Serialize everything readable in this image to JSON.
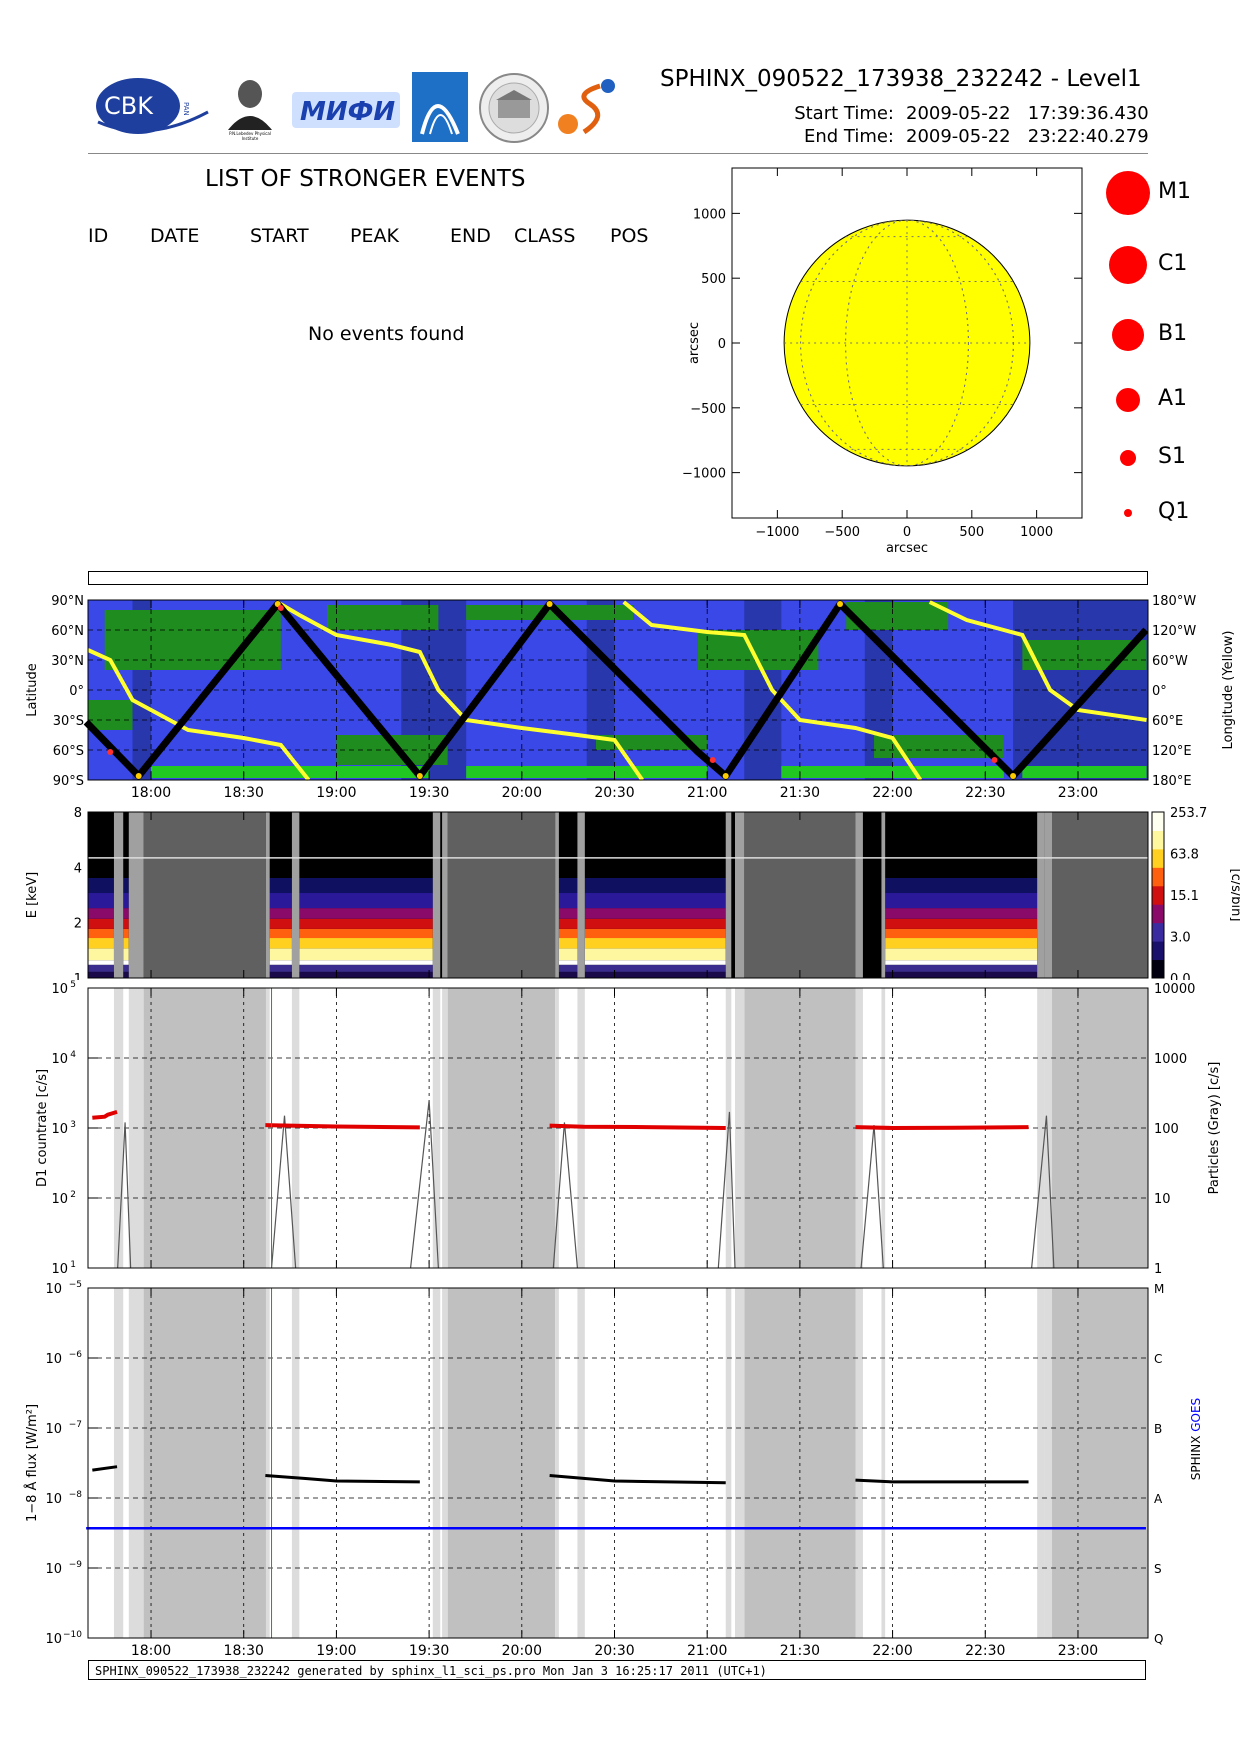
{
  "header": {
    "title": "SPHINX_090522_173938_232242 - Level1",
    "start_label": "Start Time:",
    "start_value": "2009-05-22   17:39:36.430",
    "end_label": "End Time:",
    "end_value": "2009-05-22   23:22:40.279",
    "logos": [
      {
        "icon": "cbk-logo",
        "text": "CBK",
        "sub": "PAN"
      },
      {
        "icon": "lebedev-portrait-logo",
        "text": "P.N.Lebedev Physical Institute of the Russian Academy of Science"
      },
      {
        "icon": "mifi-logo",
        "text": "МИФИ"
      },
      {
        "icon": "blue-arc-logo",
        "text": ""
      },
      {
        "icon": "building-seal-logo",
        "text": ""
      },
      {
        "icon": "swirl-logo",
        "text": ""
      }
    ]
  },
  "events": {
    "title": "LIST OF STRONGER EVENTS",
    "columns": [
      "ID",
      "DATE",
      "START",
      "PEAK",
      "END",
      "CLASS",
      "POS"
    ],
    "empty_message": "No events found"
  },
  "footer": {
    "text": "SPHINX_090522_173938_232242 generated by sphinx_l1_sci_ps.pro Mon Jan  3 16:25:17 2011 (UTC+1)"
  },
  "colors": {
    "sun": "#ffff00",
    "flare_marker": "#ff0000",
    "lat_ocean": "#3a48e8",
    "lat_green": "#1e8c1e",
    "lat_lightgreen": "#22c822",
    "lat_night": "#1a2a78",
    "gray_bg": "#c0c0c0",
    "light_gray": "#dcdcdc",
    "dark_gray": "#606060",
    "count_red": "#e00000",
    "goes_blue": "#0000ff"
  },
  "chart_data": [
    {
      "type": "scatter",
      "name": "solar_disk",
      "xlabel": "arcsec",
      "ylabel": "arcsec",
      "xlim": [
        -1350,
        1350
      ],
      "ylim": [
        -1350,
        1350
      ],
      "xticks": [
        -1000,
        -500,
        0,
        500,
        1000
      ],
      "yticks": [
        -1000,
        -500,
        0,
        500,
        1000
      ],
      "x_tick_labels": [
        "−1000",
        "−500",
        "0",
        "500",
        "1000"
      ],
      "y_tick_labels": [
        "−1000",
        "−500",
        "0",
        "500",
        "1000"
      ],
      "disk_radius": 948,
      "legend": [
        {
          "label": "M1",
          "size": 22
        },
        {
          "label": "C1",
          "size": 19
        },
        {
          "label": "B1",
          "size": 16
        },
        {
          "label": "A1",
          "size": 12
        },
        {
          "label": "S1",
          "size": 8
        },
        {
          "label": "Q1",
          "size": 4
        }
      ]
    },
    {
      "type": "line",
      "name": "latitude_orbit",
      "time_range": [
        "17:39",
        "23:22"
      ],
      "x_tick_labels": [
        "18:00",
        "18:30",
        "19:00",
        "19:30",
        "20:00",
        "20:30",
        "21:00",
        "21:30",
        "22:00",
        "22:30",
        "23:00"
      ],
      "ylabel_left": "Latitude",
      "ylabel_right": "Longitude (Yellow)",
      "left_ticks": [
        "90°N",
        "60°N",
        "30°N",
        "0°",
        "30°S",
        "60°S",
        "90°S"
      ],
      "right_ticks": [
        "180°W",
        "120°W",
        "60°W",
        "0°",
        "60°E",
        "120°E",
        "180°E"
      ],
      "latitude_track": {
        "times": [
          "17:39",
          "17:56",
          "18:41",
          "19:27",
          "20:09",
          "20:57",
          "21:06",
          "21:43",
          "22:39",
          "23:22"
        ],
        "values": [
          -32,
          -86,
          86,
          -86,
          86,
          -62,
          -86,
          86,
          -86,
          60
        ]
      }
    },
    {
      "type": "heatmap",
      "name": "spectrogram",
      "ylabel": "E [keV]",
      "y_ticks": [
        "1",
        "2",
        "4",
        "8"
      ],
      "colorbar_label": "[c/s/bin]",
      "colorbar_ticks": [
        "0.0",
        "3.0",
        "15.1",
        "63.8",
        "253.7"
      ]
    },
    {
      "type": "line",
      "name": "d1_countrate",
      "ylabel_left": "D1 countrate [c/s]",
      "ylabel_right": "Particles (Gray) [c/s]",
      "yscale": "log",
      "left_ticks": [
        {
          "base": "10",
          "exp": "5"
        },
        {
          "base": "10",
          "exp": "4"
        },
        {
          "base": "10",
          "exp": "3"
        },
        {
          "base": "10",
          "exp": "2"
        },
        {
          "base": "10",
          "exp": "1"
        }
      ],
      "right_ticks": [
        "10000",
        "1000",
        "100",
        "10",
        "1"
      ],
      "series": [
        {
          "name": "D1",
          "color": "#e00000",
          "segments": [
            {
              "t": [
                "17:41",
                "17:45",
                "17:46",
                "17:49"
              ],
              "v": [
                1400,
                1450,
                1550,
                1700
              ]
            },
            {
              "t": [
                "18:37",
                "18:45",
                "19:00",
                "19:27"
              ],
              "v": [
                1100,
                1080,
                1050,
                1020
              ]
            },
            {
              "t": [
                "20:09",
                "20:20",
                "20:40",
                "21:06"
              ],
              "v": [
                1080,
                1040,
                1030,
                1000
              ]
            },
            {
              "t": [
                "21:48",
                "22:00",
                "22:20",
                "22:44"
              ],
              "v": [
                1030,
                1000,
                1010,
                1030
              ]
            }
          ]
        }
      ]
    },
    {
      "type": "line",
      "name": "goes_flux",
      "ylabel_left": "1−8 Å flux [W/m²]",
      "ylabel_right_parts": [
        "SPHINX",
        "GOES"
      ],
      "yscale": "log",
      "left_ticks": [
        {
          "base": "10",
          "exp": "−5"
        },
        {
          "base": "10",
          "exp": "−6"
        },
        {
          "base": "10",
          "exp": "−7"
        },
        {
          "base": "10",
          "exp": "−8"
        },
        {
          "base": "10",
          "exp": "−9"
        },
        {
          "base": "10",
          "exp": "−10"
        }
      ],
      "right_ticks": [
        "M",
        "C",
        "B",
        "A",
        "S",
        "Q"
      ],
      "x_tick_labels": [
        "18:00",
        "18:30",
        "19:00",
        "19:30",
        "20:00",
        "20:30",
        "21:00",
        "21:30",
        "22:00",
        "22:30",
        "23:00"
      ],
      "series": [
        {
          "name": "SPHINX",
          "color": "#000000",
          "segments": [
            {
              "t": [
                "17:41",
                "17:49"
              ],
              "v": [
                2.5e-08,
                2.8e-08
              ]
            },
            {
              "t": [
                "18:37",
                "18:50",
                "19:00",
                "19:27"
              ],
              "v": [
                2.1e-08,
                1.9e-08,
                1.75e-08,
                1.7e-08
              ]
            },
            {
              "t": [
                "20:09",
                "20:30",
                "21:06"
              ],
              "v": [
                2.1e-08,
                1.75e-08,
                1.65e-08
              ]
            },
            {
              "t": [
                "21:48",
                "22:00",
                "22:44"
              ],
              "v": [
                1.8e-08,
                1.7e-08,
                1.7e-08
              ]
            }
          ]
        },
        {
          "name": "GOES",
          "color": "#0000ff",
          "segments": [
            {
              "t": [
                "17:39",
                "23:22"
              ],
              "v": [
                3.7e-09,
                3.7e-09
              ]
            }
          ]
        }
      ]
    }
  ]
}
